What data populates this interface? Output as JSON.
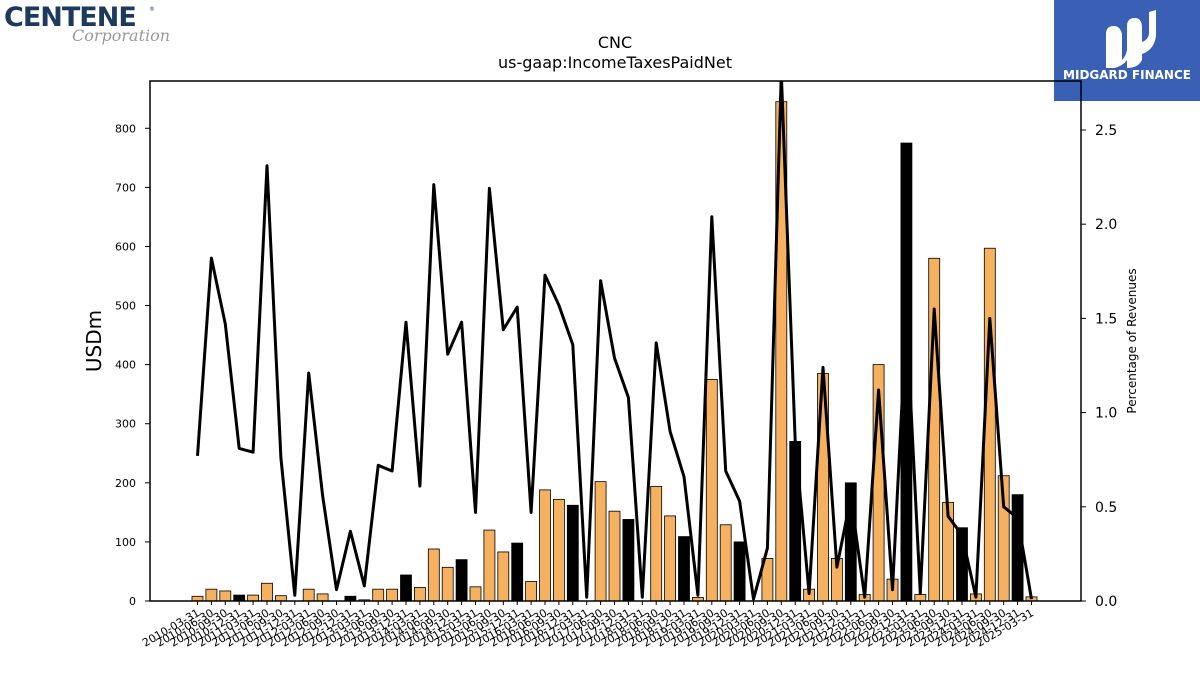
{
  "logos": {
    "left_word": "CENTENE",
    "left_reg": "®",
    "left_sub": "Corporation",
    "right_brand": "MIDGARD FINANCE"
  },
  "colors": {
    "bar_highlight": "#f5b060",
    "bar_default": "#000000",
    "line": "#000000"
  },
  "chart_data": {
    "type": "bar",
    "title": "CNC",
    "subtitle": "us-gaap:IncomeTaxesPaidNet",
    "ylabel": "USDm",
    "y2label": "Percentage of Revenues",
    "ylim": [
      0,
      880
    ],
    "y2lim": [
      0,
      2.76
    ],
    "yticks": [
      0,
      100,
      200,
      300,
      400,
      500,
      600,
      700,
      800
    ],
    "y2ticks": [
      "0.0",
      "0.5",
      "1.0",
      "1.5",
      "2.0",
      "2.5"
    ],
    "grid": false,
    "categories": [
      "2010-03-31",
      "2010-06-30",
      "2010-09-30",
      "2010-12-31",
      "2011-03-31",
      "2011-06-30",
      "2011-09-30",
      "2011-12-31",
      "2012-03-31",
      "2012-06-30",
      "2012-09-30",
      "2012-12-31",
      "2013-03-31",
      "2013-06-30",
      "2013-09-30",
      "2013-12-31",
      "2014-03-31",
      "2014-06-30",
      "2014-09-30",
      "2014-12-31",
      "2015-03-31",
      "2015-06-30",
      "2015-09-30",
      "2015-12-31",
      "2016-03-31",
      "2016-06-30",
      "2016-09-30",
      "2016-12-31",
      "2017-03-31",
      "2017-06-30",
      "2017-09-30",
      "2017-12-31",
      "2018-03-31",
      "2018-06-30",
      "2018-09-30",
      "2018-12-31",
      "2019-03-31",
      "2019-06-30",
      "2019-09-30",
      "2019-12-31",
      "2020-03-31",
      "2020-06-30",
      "2020-09-30",
      "2020-12-31",
      "2021-03-31",
      "2021-06-30",
      "2021-09-30",
      "2021-12-31",
      "2022-03-31",
      "2022-06-30",
      "2022-09-30",
      "2022-12-31",
      "2023-03-31",
      "2023-06-30",
      "2023-09-30",
      "2023-12-31",
      "2024-03-31",
      "2024-06-30",
      "2024-09-30",
      "2024-12-31",
      "2025-03-31"
    ],
    "series": [
      {
        "kind": "bar",
        "values": [
          8,
          20,
          17,
          10,
          10,
          30,
          9,
          0,
          20,
          12,
          0,
          8,
          2,
          20,
          20,
          44,
          23,
          88,
          57,
          70,
          24,
          120,
          83,
          98,
          33,
          188,
          172,
          162,
          0,
          202,
          152,
          138,
          0,
          194,
          144,
          109,
          6,
          375,
          129,
          100,
          0,
          72,
          845,
          270,
          20,
          385,
          72,
          200,
          11,
          400,
          37,
          775,
          11,
          580,
          167,
          124,
          12,
          597,
          212,
          180,
          7
        ],
        "highlight": [
          1,
          1,
          1,
          0,
          1,
          1,
          1,
          1,
          1,
          1,
          1,
          0,
          1,
          1,
          1,
          0,
          1,
          1,
          1,
          0,
          1,
          1,
          1,
          0,
          1,
          1,
          1,
          0,
          1,
          1,
          1,
          0,
          1,
          1,
          1,
          0,
          1,
          1,
          1,
          0,
          1,
          1,
          1,
          0,
          1,
          1,
          1,
          0,
          1,
          1,
          1,
          0,
          1,
          1,
          1,
          0,
          1,
          1,
          1,
          0,
          1
        ]
      },
      {
        "kind": "line",
        "axis": "right",
        "values": [
          0.77,
          1.82,
          1.47,
          0.81,
          0.79,
          2.31,
          0.76,
          0.03,
          1.21,
          0.56,
          0.06,
          0.37,
          0.08,
          0.72,
          0.69,
          1.48,
          0.61,
          2.21,
          1.31,
          1.48,
          0.47,
          2.19,
          1.44,
          1.56,
          0.47,
          1.73,
          1.57,
          1.36,
          0.02,
          1.7,
          1.29,
          1.08,
          0.02,
          1.37,
          0.9,
          0.66,
          0.03,
          2.04,
          0.69,
          0.53,
          0.01,
          0.28,
          2.8,
          0.85,
          0.04,
          1.24,
          0.18,
          0.55,
          0.02,
          1.12,
          0.06,
          1.51,
          0.04,
          1.55,
          0.45,
          0.35,
          0.02,
          1.5,
          0.5,
          0.44,
          0.01
        ]
      }
    ]
  }
}
